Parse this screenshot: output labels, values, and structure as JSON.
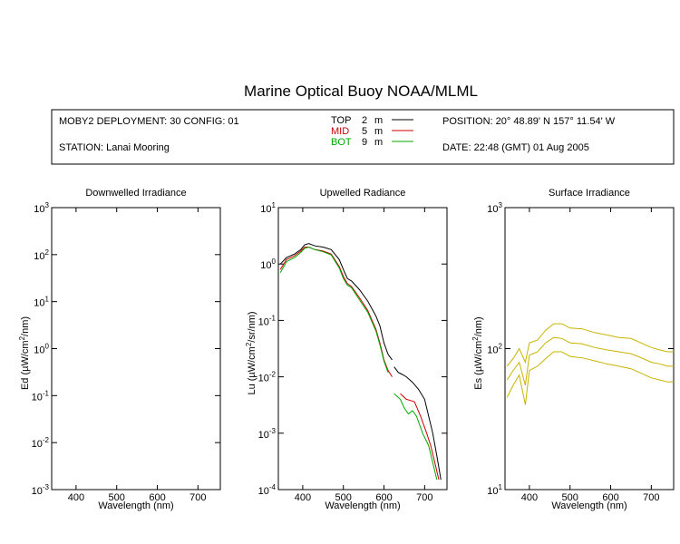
{
  "title": "Marine Optical Buoy NOAA/MLML",
  "info": {
    "deployment": "MOBY2 DEPLOYMENT: 30 CONFIG: 01",
    "station": "STATION: Lanai Mooring",
    "position": "POSITION: 20° 48.89' N   157° 11.54' W",
    "date": "DATE: 22:48 (GMT) 01 Aug 2005",
    "legend": [
      {
        "name": "TOP",
        "depth": "2",
        "unit": "m",
        "color": "#000000"
      },
      {
        "name": "MID",
        "depth": "5",
        "unit": "m",
        "color": "#cc0000"
      },
      {
        "name": "BOT",
        "depth": "9",
        "unit": "m",
        "color": "#00aa00"
      }
    ]
  },
  "chart_data": [
    {
      "type": "line",
      "title": "Downwelled Irradiance",
      "xlabel": "Wavelength (nm)",
      "ylabel_main": "Ed",
      "ylabel_unit_pre": "(µW/cm",
      "ylabel_unit_post": "/nm)",
      "xlim": [
        340,
        755
      ],
      "ylim": [
        0.001,
        1000
      ],
      "yscale": "log",
      "xticks": [
        400,
        500,
        600,
        700
      ],
      "yticks": [
        {
          "value": 0.001,
          "base": "10",
          "exp": "-3"
        },
        {
          "value": 0.01,
          "base": "10",
          "exp": "-2"
        },
        {
          "value": 0.1,
          "base": "10",
          "exp": "-1"
        },
        {
          "value": 1,
          "base": "10",
          "exp": "0"
        },
        {
          "value": 10,
          "base": "10",
          "exp": "1"
        },
        {
          "value": 100,
          "base": "10",
          "exp": "2"
        },
        {
          "value": 1000,
          "base": "10",
          "exp": "3"
        }
      ],
      "series": []
    },
    {
      "type": "line",
      "title": "Upwelled Radiance",
      "xlabel": "Wavelength (nm)",
      "ylabel_main": "Lu",
      "ylabel_unit_pre": "(µW/cm",
      "ylabel_unit_post": "/sr/nm)",
      "xlim": [
        340,
        755
      ],
      "ylim": [
        0.0001,
        10
      ],
      "yscale": "log",
      "xticks": [
        400,
        500,
        600,
        700
      ],
      "yticks": [
        {
          "value": 0.0001,
          "base": "10",
          "exp": "-4"
        },
        {
          "value": 0.001,
          "base": "10",
          "exp": "-3"
        },
        {
          "value": 0.01,
          "base": "10",
          "exp": "-2"
        },
        {
          "value": 0.1,
          "base": "10",
          "exp": "-1"
        },
        {
          "value": 1,
          "base": "10",
          "exp": "0"
        },
        {
          "value": 10,
          "base": "10",
          "exp": "1"
        }
      ],
      "series": [
        {
          "color": "#000000",
          "segments": [
            [
              [
                345,
                1.0
              ],
              [
                360,
                1.3
              ],
              [
                380,
                1.5
              ],
              [
                395,
                1.8
              ],
              [
                405,
                2.2
              ],
              [
                415,
                2.3
              ],
              [
                430,
                2.1
              ],
              [
                450,
                2.0
              ],
              [
                470,
                1.8
              ],
              [
                490,
                1.2
              ],
              [
                500,
                0.8
              ],
              [
                510,
                0.55
              ],
              [
                520,
                0.5
              ],
              [
                540,
                0.35
              ],
              [
                560,
                0.22
              ],
              [
                580,
                0.12
              ],
              [
                590,
                0.08
              ],
              [
                600,
                0.04
              ],
              [
                610,
                0.025
              ],
              [
                620,
                0.02
              ]
            ],
            [
              [
                625,
                0.015
              ],
              [
                635,
                0.012
              ],
              [
                645,
                0.011
              ],
              [
                655,
                0.01
              ],
              [
                670,
                0.008
              ],
              [
                685,
                0.006
              ],
              [
                700,
                0.004
              ],
              [
                710,
                0.002
              ],
              [
                720,
                0.001
              ],
              [
                730,
                0.0004
              ],
              [
                740,
                0.00015
              ]
            ]
          ]
        },
        {
          "color": "#cc0000",
          "segments": [
            [
              [
                345,
                0.8
              ],
              [
                360,
                1.2
              ],
              [
                380,
                1.4
              ],
              [
                395,
                1.7
              ],
              [
                405,
                2.0
              ],
              [
                415,
                2.0
              ],
              [
                430,
                1.8
              ],
              [
                450,
                1.7
              ],
              [
                470,
                1.5
              ],
              [
                490,
                0.9
              ],
              [
                500,
                0.6
              ],
              [
                510,
                0.45
              ],
              [
                520,
                0.4
              ],
              [
                540,
                0.25
              ],
              [
                560,
                0.15
              ],
              [
                580,
                0.07
              ],
              [
                590,
                0.04
              ],
              [
                600,
                0.02
              ],
              [
                610,
                0.013
              ],
              [
                620,
                0.01
              ]
            ],
            [
              [
                640,
                0.005
              ],
              [
                655,
                0.004
              ],
              [
                665,
                0.0038
              ],
              [
                675,
                0.0036
              ],
              [
                690,
                0.002
              ],
              [
                705,
                0.001
              ],
              [
                715,
                0.0006
              ],
              [
                725,
                0.0003
              ],
              [
                735,
                0.00015
              ]
            ]
          ]
        },
        {
          "color": "#00aa00",
          "segments": [
            [
              [
                345,
                0.7
              ],
              [
                360,
                1.1
              ],
              [
                380,
                1.3
              ],
              [
                395,
                1.6
              ],
              [
                405,
                1.9
              ],
              [
                415,
                2.0
              ],
              [
                430,
                1.8
              ],
              [
                450,
                1.65
              ],
              [
                470,
                1.45
              ],
              [
                490,
                0.85
              ],
              [
                500,
                0.55
              ],
              [
                510,
                0.42
              ],
              [
                520,
                0.38
              ],
              [
                540,
                0.23
              ],
              [
                560,
                0.14
              ],
              [
                580,
                0.065
              ],
              [
                590,
                0.037
              ],
              [
                600,
                0.019
              ],
              [
                610,
                0.012
              ]
            ],
            [
              [
                625,
                0.005
              ],
              [
                640,
                0.004
              ],
              [
                650,
                0.0028
              ],
              [
                660,
                0.0022
              ],
              [
                670,
                0.0025
              ],
              [
                680,
                0.002
              ],
              [
                695,
                0.001
              ],
              [
                710,
                0.0006
              ],
              [
                720,
                0.0003
              ],
              [
                730,
                0.00015
              ]
            ]
          ]
        }
      ]
    },
    {
      "type": "line",
      "title": "Surface Irradiance",
      "xlabel": "Wavelength (nm)",
      "ylabel_main": "Es",
      "ylabel_unit_pre": "(µW/cm",
      "ylabel_unit_post": "/nm)",
      "xlim": [
        340,
        755
      ],
      "ylim": [
        10,
        1000
      ],
      "yscale": "log",
      "xticks": [
        400,
        500,
        600,
        700
      ],
      "yticks": [
        {
          "value": 10,
          "base": "10",
          "exp": "1"
        },
        {
          "value": 100,
          "base": "10",
          "exp": "2"
        },
        {
          "value": 1000,
          "base": "10",
          "exp": "3"
        }
      ],
      "series": [
        {
          "color": "#c8b400",
          "segments": [
            [
              [
                345,
                75
              ],
              [
                360,
                85
              ],
              [
                375,
                100
              ],
              [
                390,
                80
              ],
              [
                400,
                110
              ],
              [
                420,
                115
              ],
              [
                440,
                135
              ],
              [
                460,
                150
              ],
              [
                480,
                150
              ],
              [
                500,
                140
              ],
              [
                530,
                138
              ],
              [
                560,
                130
              ],
              [
                590,
                125
              ],
              [
                620,
                120
              ],
              [
                650,
                118
              ],
              [
                680,
                108
              ],
              [
                700,
                102
              ],
              [
                720,
                98
              ],
              [
                740,
                95
              ],
              [
                755,
                95
              ]
            ]
          ]
        },
        {
          "color": "#c8b400",
          "segments": [
            [
              [
                345,
                60
              ],
              [
                360,
                70
              ],
              [
                375,
                80
              ],
              [
                390,
                55
              ],
              [
                400,
                90
              ],
              [
                420,
                95
              ],
              [
                440,
                110
              ],
              [
                460,
                120
              ],
              [
                480,
                118
              ],
              [
                500,
                110
              ],
              [
                530,
                108
              ],
              [
                560,
                102
              ],
              [
                590,
                98
              ],
              [
                620,
                95
              ],
              [
                650,
                92
              ],
              [
                680,
                85
              ],
              [
                700,
                80
              ],
              [
                720,
                78
              ],
              [
                740,
                75
              ],
              [
                755,
                75
              ]
            ]
          ]
        },
        {
          "color": "#c8b400",
          "segments": [
            [
              [
                345,
                45
              ],
              [
                360,
                55
              ],
              [
                375,
                65
              ],
              [
                390,
                40
              ],
              [
                400,
                70
              ],
              [
                420,
                75
              ],
              [
                440,
                85
              ],
              [
                460,
                95
              ],
              [
                480,
                95
              ],
              [
                500,
                88
              ],
              [
                530,
                86
              ],
              [
                560,
                82
              ],
              [
                590,
                78
              ],
              [
                620,
                75
              ],
              [
                650,
                72
              ],
              [
                680,
                66
              ],
              [
                700,
                62
              ],
              [
                720,
                60
              ],
              [
                740,
                58
              ],
              [
                755,
                58
              ]
            ]
          ]
        }
      ]
    }
  ]
}
